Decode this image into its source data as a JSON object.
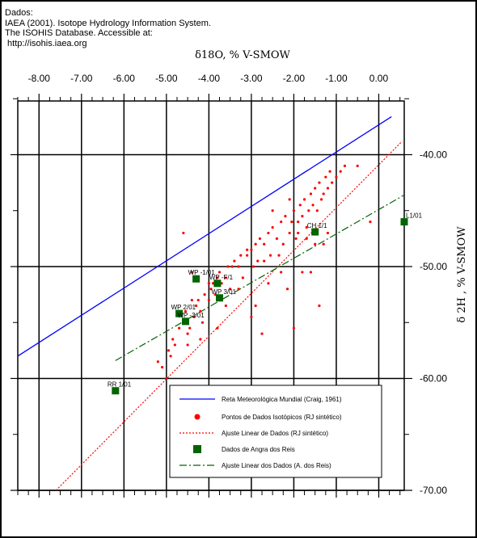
{
  "source_note": {
    "lines": [
      "Dados:",
      "IAEA (2001). Isotope Hydrology Information System.",
      "The ISOHIS Database. Accessible at:",
      " http://isohis.iaea.org"
    ]
  },
  "chart_data": {
    "type": "scatter",
    "xlabel": "δ18O, %  V-SMOW",
    "ylabel": "δ 2H , % V-SMOW",
    "xlim": [
      -8.5,
      0.6
    ],
    "ylim": [
      -70,
      -35.2
    ],
    "x_ticks": [
      -8.0,
      -7.0,
      -6.0,
      -5.0,
      -4.0,
      -3.0,
      -2.0,
      -1.0,
      0.0
    ],
    "x_tick_labels": [
      "-8.00",
      "-7.00",
      "-6.00",
      "-5.00",
      "-4.00",
      "-3.00",
      "-2.00",
      "-1.00",
      "0.00"
    ],
    "y_ticks": [
      -40,
      -50,
      -60,
      -70
    ],
    "y_tick_labels": [
      "-40.00",
      "-50.00",
      "-60.00",
      "-70.00"
    ],
    "series": [
      {
        "name": "Reta Meteorológica Mundial (Craig, 1961)",
        "kind": "line",
        "color": "#0000ff",
        "dash": "solid",
        "x": [
          -8.5,
          0.3
        ],
        "y": [
          -58.0,
          -36.6
        ]
      },
      {
        "name": "Pontos de Dados Isotópicos (RJ sintético)",
        "kind": "points",
        "color": "#ff0000",
        "x": [
          -5.2,
          -5.1,
          -5.0,
          -4.95,
          -4.9,
          -4.85,
          -4.8,
          -4.7,
          -4.6,
          -4.55,
          -4.5,
          -4.45,
          -4.4,
          -4.35,
          -4.3,
          -4.25,
          -4.2,
          -4.1,
          -4.0,
          -3.95,
          -3.9,
          -3.85,
          -3.8,
          -3.75,
          -3.7,
          -3.6,
          -3.55,
          -3.5,
          -3.4,
          -3.3,
          -3.25,
          -3.2,
          -3.1,
          -3.0,
          -2.95,
          -2.9,
          -2.85,
          -2.8,
          -2.7,
          -2.6,
          -2.55,
          -2.5,
          -2.4,
          -2.3,
          -2.25,
          -2.2,
          -2.1,
          -2.05,
          -2.0,
          -1.95,
          -1.9,
          -1.85,
          -1.8,
          -1.75,
          -1.7,
          -1.65,
          -1.6,
          -1.55,
          -1.5,
          -1.45,
          -1.4,
          -1.35,
          -1.3,
          -1.25,
          -1.2,
          -1.15,
          -1.1,
          -1.0,
          -0.9,
          -0.8,
          -0.5,
          -0.2,
          -4.6,
          -3.1,
          -2.5,
          -2.1,
          -1.9,
          -1.5,
          -3.8,
          -4.2,
          -3.0,
          -2.7,
          -2.3,
          -1.7,
          -1.2,
          -1.3,
          -2.9,
          -3.3,
          -3.6,
          -4.0,
          -4.4,
          -2.0,
          -1.8,
          -2.6,
          -3.45,
          -2.15,
          -1.6,
          -1.4,
          -2.35,
          -2.75,
          -4.5,
          -4.15
        ],
        "y": [
          -58.5,
          -59.0,
          -60.0,
          -57.5,
          -58.0,
          -56.5,
          -57.0,
          -55.5,
          -55.0,
          -54.0,
          -56.0,
          -55.5,
          -53.0,
          -54.5,
          -53.5,
          -53.0,
          -54.0,
          -52.5,
          -53.0,
          -52.0,
          -51.5,
          -52.5,
          -51.0,
          -50.5,
          -51.5,
          -51.0,
          -50.0,
          -52.0,
          -49.5,
          -50.0,
          -49.0,
          -51.0,
          -49.0,
          -48.5,
          -50.0,
          -48.0,
          -49.5,
          -47.5,
          -48.0,
          -47.0,
          -49.0,
          -46.5,
          -47.5,
          -46.0,
          -48.0,
          -45.5,
          -47.0,
          -46.0,
          -45.0,
          -47.5,
          -46.0,
          -44.5,
          -45.5,
          -44.0,
          -46.5,
          -45.0,
          -43.5,
          -44.5,
          -43.0,
          -45.0,
          -42.5,
          -44.0,
          -43.5,
          -42.0,
          -43.0,
          -41.5,
          -42.5,
          -42.0,
          -41.5,
          -41.0,
          -41.0,
          -46.0,
          -47.0,
          -48.5,
          -45.0,
          -44.0,
          -47.0,
          -48.0,
          -55.5,
          -56.5,
          -54.5,
          -49.5,
          -50.5,
          -47.5,
          -47.0,
          -48.0,
          -53.5,
          -52.0,
          -53.5,
          -51.5,
          -50.5,
          -55.5,
          -50.5,
          -51.5,
          -50.0,
          -52.0,
          -50.5,
          -53.5,
          -49.0,
          -56.0,
          -57.0,
          -55.0
        ]
      },
      {
        "name": "Ajuste Linear de Dados (RJ sintético)",
        "kind": "line",
        "color": "#ff0000",
        "dash": "dotted",
        "x": [
          -7.6,
          0.55
        ],
        "y": [
          -70.0,
          -38.8
        ]
      },
      {
        "name": "Dados de Angra dos Reis",
        "kind": "points",
        "color": "#006400",
        "x": [
          -6.2,
          -4.7,
          -4.55,
          -4.3,
          -3.75,
          -3.8,
          -1.5,
          0.6
        ],
        "y": [
          -61.1,
          -54.2,
          -54.9,
          -51.1,
          -52.8,
          -51.5,
          -46.9,
          -46.0
        ],
        "labels": [
          "RR 1/01",
          "WP 2/01",
          "WP -3/01",
          "WP -1/01",
          "WP 3/01",
          "WP -F/1",
          "CH 1/1",
          "L1/01"
        ]
      },
      {
        "name": "Ajuste Linear dos Dados (A. dos Reis)",
        "kind": "line",
        "color": "#006400",
        "dash": "dashdot",
        "x": [
          -6.2,
          0.6
        ],
        "y": [
          -58.4,
          -43.6
        ]
      }
    ],
    "grid": true,
    "legend_position": "bottom-right"
  }
}
